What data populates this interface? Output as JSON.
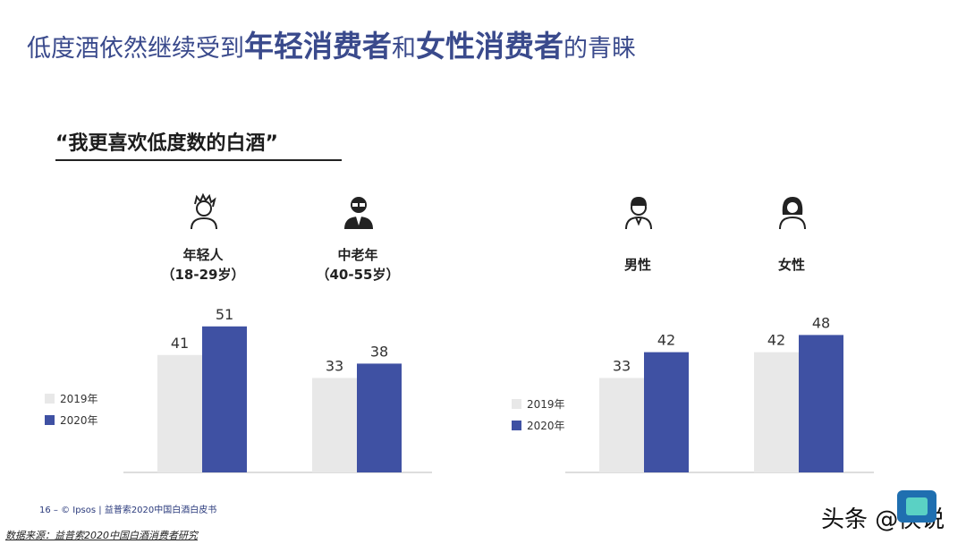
{
  "header": {
    "title_part1": "低度酒依然继续受到",
    "title_bold1": "年轻消费者",
    "title_part2": "和",
    "title_bold2": "女性消费者",
    "title_part3": "的青睐"
  },
  "quote": "“我更喜欢低度数的白酒”",
  "colors": {
    "y2019": "#e8e8e8",
    "y2020": "#3f51a3",
    "title": "#3a4a8c",
    "axis": "#bbbbbb"
  },
  "chart_data": [
    {
      "type": "bar",
      "categories": [
        "年轻人（18-29岁）",
        "中老年（40-55岁）"
      ],
      "series": [
        {
          "name": "2019年",
          "values": [
            41,
            33
          ]
        },
        {
          "name": "2020年",
          "values": [
            51,
            38
          ]
        }
      ],
      "ylim": [
        0,
        65
      ],
      "legend": "left"
    },
    {
      "type": "bar",
      "categories": [
        "男性",
        "女性"
      ],
      "series": [
        {
          "name": "2019年",
          "values": [
            33,
            42
          ]
        },
        {
          "name": "2020年",
          "values": [
            42,
            48
          ]
        }
      ],
      "ylim": [
        0,
        65
      ],
      "legend": "left"
    }
  ],
  "groups": {
    "young": {
      "line1": "年轻人",
      "line2": "（18-29岁）",
      "icon": "young-person-icon"
    },
    "old": {
      "line1": "中老年",
      "line2": "（40-55岁）",
      "icon": "middle-aged-person-icon"
    },
    "male": {
      "line1": "男性",
      "icon": "male-icon"
    },
    "female": {
      "line1": "女性",
      "icon": "female-icon"
    }
  },
  "legend": {
    "y2019": "2019年",
    "y2020": "2020年"
  },
  "footer": "16 –  © Ipsos | 益普索2020中国白酒白皮书",
  "source": "数据来源：益普索2020中国白酒消费者研究",
  "watermark": "头条 @侠说"
}
